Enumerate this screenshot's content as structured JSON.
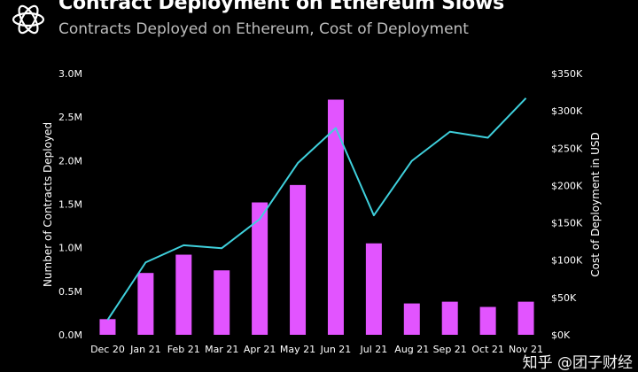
{
  "header": {
    "title": "Contract Deployment on Ethereum Slows",
    "subtitle": "Contracts Deployed on Ethereum, Cost of Deployment",
    "logo_icon": "knot-logo-icon"
  },
  "watermark": "知乎 @团子财经",
  "colors": {
    "background": "#000000",
    "bar": "#e254ff",
    "line": "#3fd0dc",
    "plot_background": "#000000"
  },
  "chart_data": {
    "type": "bar",
    "title": "Contract Deployment on Ethereum Slows",
    "subtitle": "Contracts Deployed on Ethereum, Cost of Deployment",
    "categories": [
      "Dec 20",
      "Jan 21",
      "Feb 21",
      "Mar 21",
      "Apr 21",
      "May 21",
      "Jun 21",
      "Jul 21",
      "Aug 21",
      "Sep 21",
      "Oct 21",
      "Nov 21"
    ],
    "series": [
      {
        "name": "Number of Contracts Deployed",
        "type": "bar",
        "axis": "left",
        "values": [
          180000,
          710000,
          920000,
          740000,
          1520000,
          1720000,
          2700000,
          1050000,
          360000,
          380000,
          320000,
          380000
        ]
      },
      {
        "name": "Cost of Deployment in USD",
        "type": "line",
        "axis": "right",
        "values": [
          20000,
          97000,
          120000,
          116000,
          155000,
          230000,
          277000,
          160000,
          233000,
          272000,
          264000,
          317000
        ]
      }
    ],
    "ylabel": "Number of Contracts Deployed",
    "y2label": "Cost of Deployment in USD",
    "ylim": [
      0,
      3000000
    ],
    "y2lim": [
      0,
      350000
    ],
    "yticks": [
      "0.0M",
      "0.5M",
      "1.0M",
      "1.5M",
      "2.0M",
      "2.5M",
      "3.0M"
    ],
    "y2ticks": [
      "$0K",
      "$50K",
      "$100K",
      "$150K",
      "$200K",
      "$250K",
      "$300K",
      "$350K"
    ],
    "grid": false,
    "legend": "none"
  }
}
